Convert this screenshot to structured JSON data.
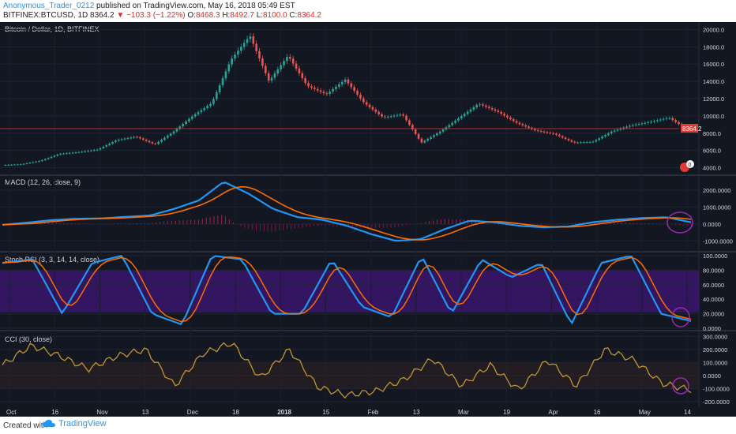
{
  "header": {
    "author": "Anonymous_Trader_0212",
    "published_text": "published on TradingView.com, May 16, 2018 05:49 EST",
    "symbol_line": {
      "symbol": "BITFINEX:BTCUSD, 1D",
      "price": "8364.2",
      "change": "▼ −103.3 (−1.22%)",
      "o_label": "O:",
      "o_value": "8468.3",
      "h_label": "H:",
      "h_value": "8492.7",
      "l_label": "L:",
      "l_value": "8100.0",
      "c_label": "C:",
      "c_value": "8364.2"
    }
  },
  "footer": {
    "created_with": "Created with",
    "brand": "TradingView"
  },
  "colors": {
    "background": "#131722",
    "up": "#26a69a",
    "down": "#ef5350",
    "macd_line": "#2196f3",
    "signal_line": "#ff6d00",
    "stoch_k": "#2196f3",
    "stoch_d": "#ff6d00",
    "rsi_band": "#4a148c",
    "cci_line": "#c39530",
    "annotation": "#9c27b0",
    "price_line": "#e53935"
  },
  "panes": {
    "price": {
      "label": "Bitcoin / Dollar, 1D, BITFINEX",
      "axis_ticks": [
        "20000.0",
        "18000.0",
        "16000.0",
        "14000.0",
        "12000.0",
        "10000.0",
        "8000.0",
        "6000.0",
        "4000.0"
      ],
      "axis_values": [
        20000,
        18000,
        16000,
        14000,
        12000,
        10000,
        8000,
        6000,
        4000
      ],
      "current_price_label": "8364.2",
      "badge_count": "0"
    },
    "macd": {
      "label": "MACD (12, 26, close, 9)",
      "axis_ticks": [
        "2000.0000",
        "1000.0000",
        "0.0000",
        "-1000.0000"
      ],
      "axis_values": [
        2000,
        1000,
        0,
        -1000
      ]
    },
    "stoch": {
      "label": "Stoch RSI (3, 3, 14, 14, close)",
      "axis_ticks": [
        "100.0000",
        "80.0000",
        "60.0000",
        "40.0000",
        "20.0000",
        "0.0000"
      ],
      "axis_values": [
        100,
        80,
        60,
        40,
        20,
        0
      ]
    },
    "cci": {
      "label": "CCI (30, close)",
      "axis_ticks": [
        "300.0000",
        "200.0000",
        "100.0000",
        "0.0000",
        "-100.0000",
        "-200.0000"
      ],
      "axis_values": [
        300,
        200,
        100,
        0,
        -100,
        -200
      ]
    }
  },
  "x_axis": {
    "labels": [
      "Oct",
      "16",
      "Nov",
      "13",
      "Dec",
      "18",
      "2018",
      "15",
      "Feb",
      "13",
      "Mar",
      "19",
      "Apr",
      "16",
      "May",
      "14"
    ]
  },
  "chart_data": {
    "type": "line",
    "series": [
      {
        "name": "Bitcoin / Dollar",
        "values": [
          4300,
          4400,
          4800,
          5600,
          5800,
          6100,
          7200,
          7600,
          6700,
          8200,
          10000,
          11500,
          16500,
          19300,
          14000,
          17000,
          13500,
          12500,
          14200,
          11500,
          9800,
          10200,
          6900,
          8200,
          9800,
          11400,
          10500,
          9200,
          8300,
          7900,
          6900,
          7000,
          8200,
          8900,
          9300,
          9800,
          8364
        ]
      },
      {
        "name": "MACD",
        "values": [
          -50,
          80,
          230,
          310,
          330,
          420,
          500,
          900,
          1400,
          2500,
          1800,
          900,
          400,
          250,
          -100,
          -600,
          -1000,
          -900,
          -300,
          200,
          100,
          -100,
          -200,
          -150,
          100,
          250,
          350,
          400,
          100
        ]
      },
      {
        "name": "Stoch RSI",
        "values": [
          90,
          95,
          20,
          90,
          100,
          20,
          5,
          100,
          95,
          20,
          20,
          95,
          30,
          15,
          100,
          20,
          95,
          70,
          90,
          5,
          90,
          100,
          20,
          10
        ]
      },
      {
        "name": "CCI",
        "values": [
          80,
          230,
          150,
          50,
          150,
          200,
          -80,
          170,
          250,
          -20,
          200,
          -90,
          -150,
          -120,
          -30,
          130,
          -80,
          80,
          -110,
          120,
          -80,
          200,
          120,
          -60,
          -110
        ]
      }
    ]
  }
}
